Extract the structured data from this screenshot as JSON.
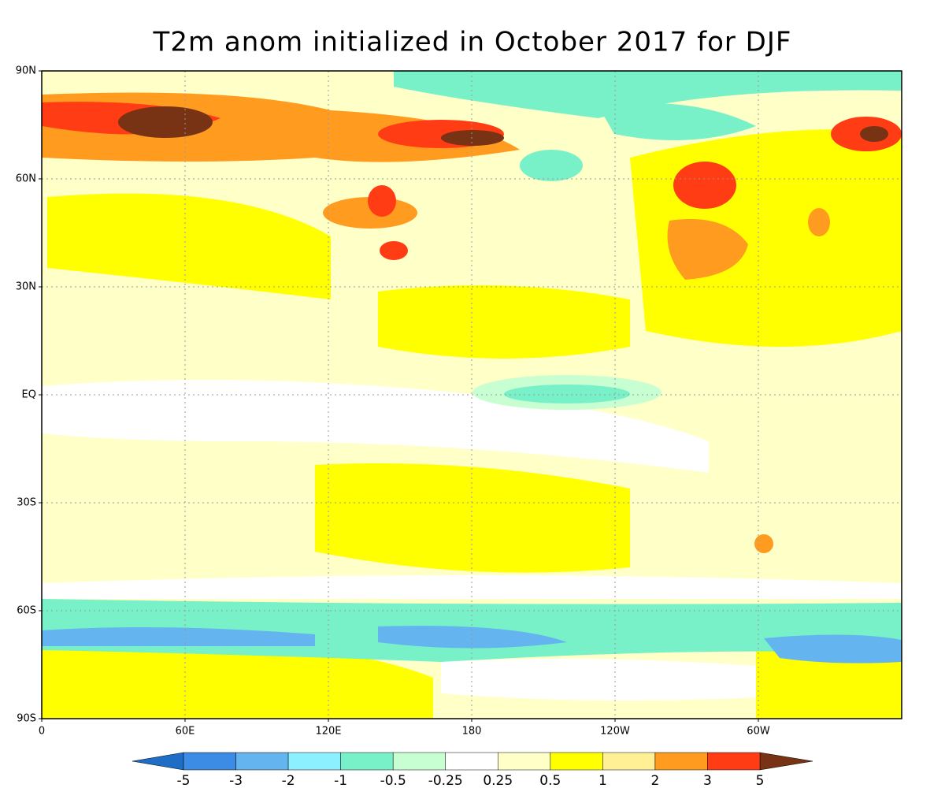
{
  "title": "T2m anom initialized in October 2017 for DJF",
  "map": {
    "lat_labels": [
      "90N",
      "60N",
      "30N",
      "EQ",
      "30S",
      "60S",
      "90S"
    ],
    "lon_labels": [
      "0",
      "60E",
      "120E",
      "180",
      "120W",
      "60W"
    ]
  },
  "colorbar": {
    "labels": [
      "-5",
      "-3",
      "-2",
      "-1",
      "-0.5",
      "-0.25",
      "0.25",
      "0.5",
      "1",
      "2",
      "3",
      "5"
    ],
    "under_color": "#1e6ec8",
    "colors": [
      "#3c8ce6",
      "#64b4f0",
      "#8cf0ff",
      "#78f0c8",
      "#c8ffd2",
      "#ffffff",
      "#ffffc8",
      "#ffff00",
      "#fff096",
      "#ff9b1e",
      "#ff3c14"
    ],
    "over_color": "#783214"
  }
}
